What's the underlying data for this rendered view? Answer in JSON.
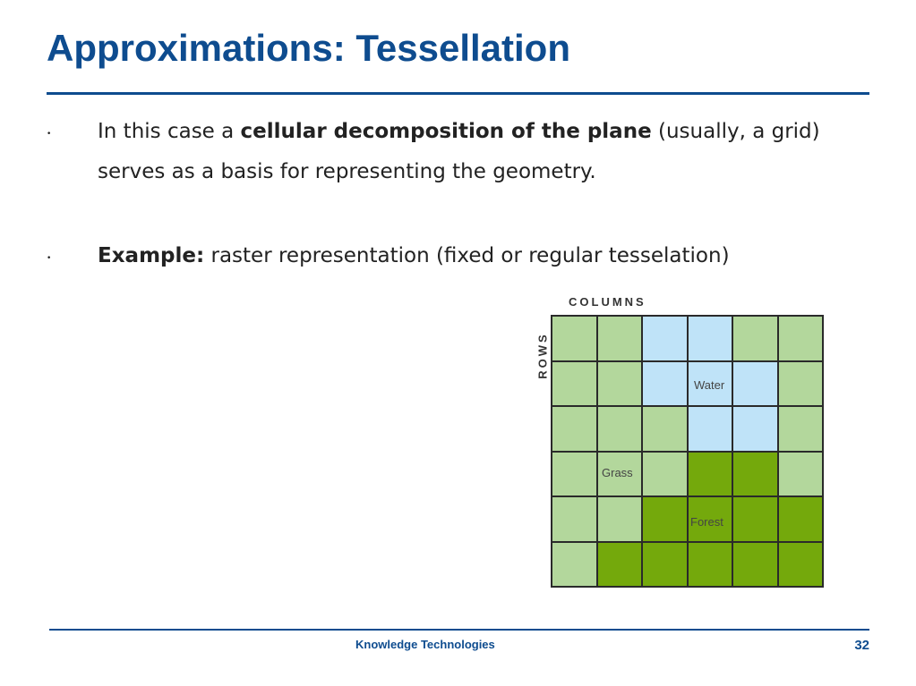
{
  "title": "Approximations: Tessellation",
  "bullets": [
    {
      "pre": "In this case a ",
      "bold": "cellular decomposition of the plane",
      "post": " (usually, a grid) serves as a basis for representing the geometry."
    },
    {
      "pre": "",
      "bold": "Example:",
      "post": " raster representation (fixed or regular tesselation)"
    }
  ],
  "figure": {
    "columns_label": "COLUMNS",
    "rows_label": "ROWS",
    "labels": {
      "water": "Water",
      "grass": "Grass",
      "forest": "Forest"
    },
    "colors": {
      "G": "#b3d79c",
      "W": "#bfe3f8",
      "F": "#74a90c"
    },
    "cells": [
      [
        "G",
        "G",
        "W",
        "W",
        "G",
        "G"
      ],
      [
        "G",
        "G",
        "W",
        "W",
        "W",
        "G"
      ],
      [
        "G",
        "G",
        "G",
        "W",
        "W",
        "G"
      ],
      [
        "G",
        "G",
        "G",
        "F",
        "F",
        "G"
      ],
      [
        "G",
        "G",
        "F",
        "F",
        "F",
        "F"
      ],
      [
        "G",
        "F",
        "F",
        "F",
        "F",
        "F"
      ]
    ]
  },
  "footer": {
    "text": "Knowledge Technologies",
    "page": "32"
  }
}
